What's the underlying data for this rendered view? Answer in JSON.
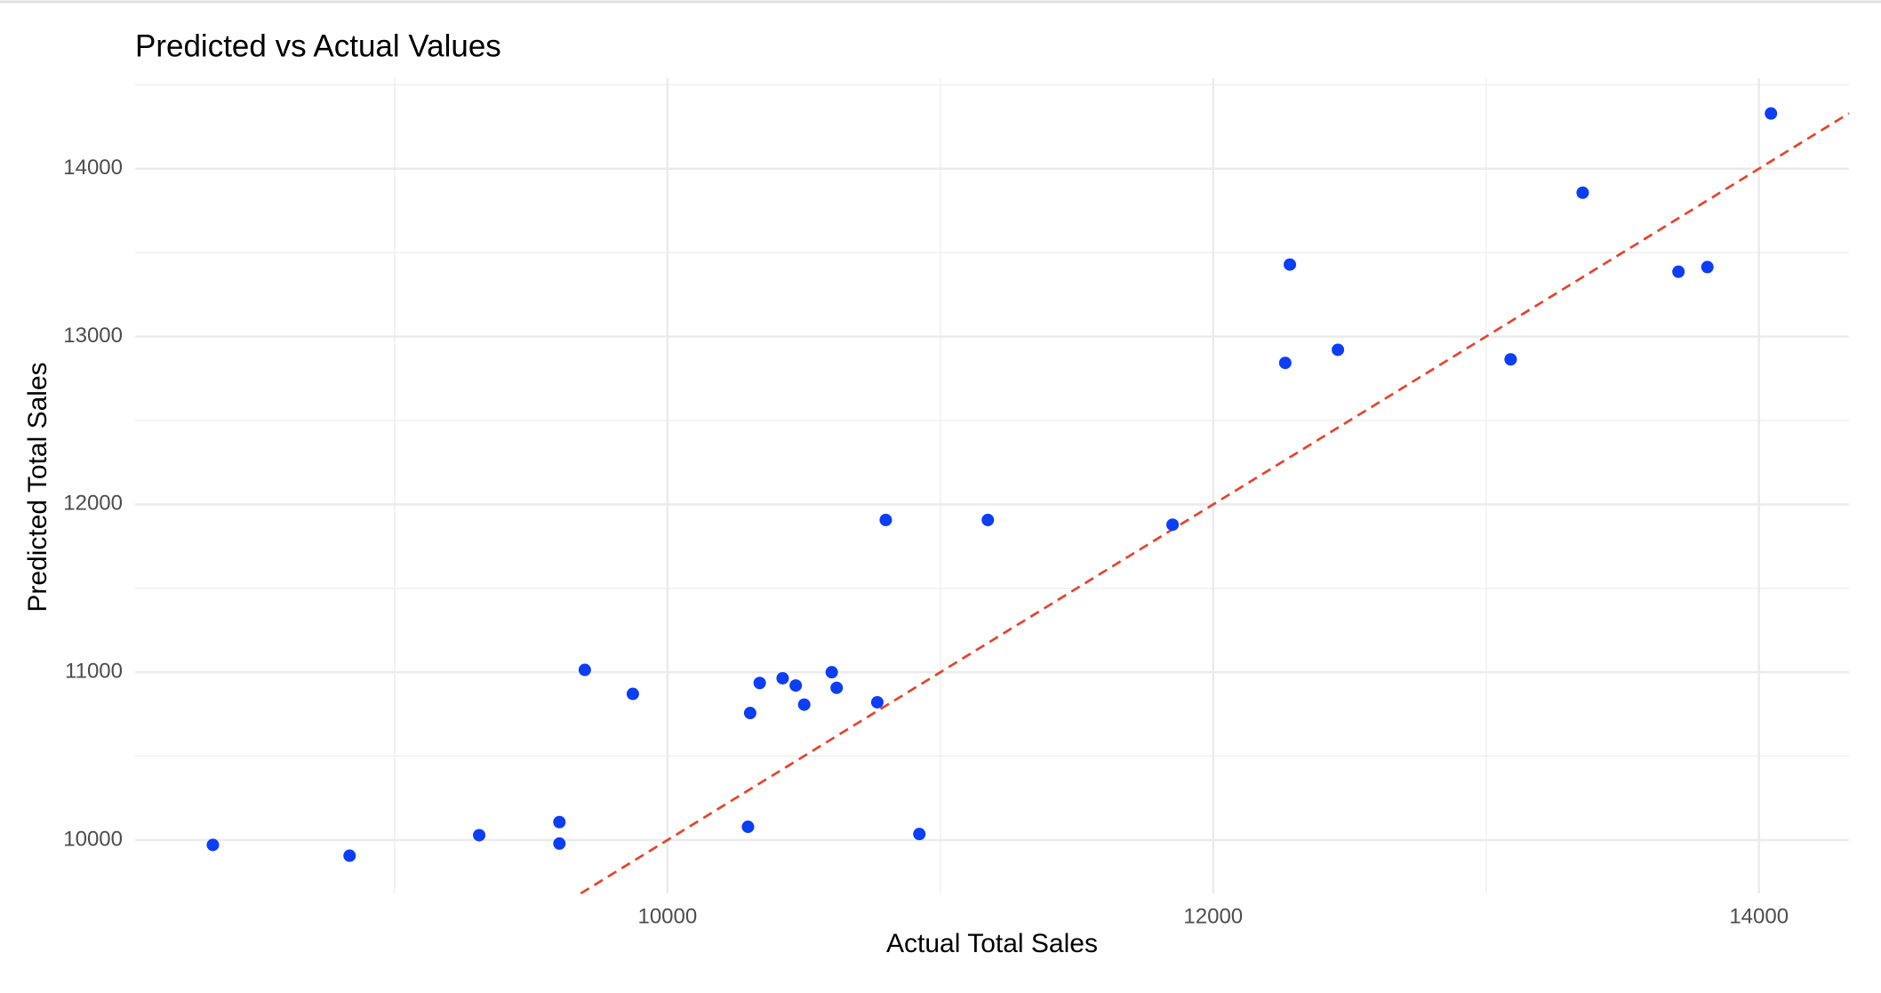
{
  "chart_data": {
    "type": "scatter",
    "title": "Predicted vs Actual Values",
    "x_label": "Actual Total Sales",
    "y_label": "Predicted Total Sales",
    "series": [
      {
        "color": "#0b3ef5",
        "x": [
          8334,
          8835,
          9310,
          9604,
          9604,
          9697,
          9873,
          10295,
          10303,
          10338,
          10422,
          10470,
          10501,
          10602,
          10620,
          10769,
          10800,
          10923,
          11174,
          11851,
          12264,
          12281,
          12457,
          13090,
          13354,
          13705,
          13811,
          14044
        ],
        "values": [
          9971,
          9907,
          10029,
          10107,
          9979,
          11014,
          10871,
          10079,
          10757,
          10936,
          10964,
          10921,
          10807,
          11000,
          10907,
          10821,
          11907,
          10036,
          11907,
          11879,
          12843,
          13429,
          12921,
          12864,
          13857,
          13386,
          13414,
          14329
        ]
      }
    ],
    "reference_line": {
      "slope": 1,
      "intercept": 0,
      "color": "#e8432b",
      "style": "dashed"
    },
    "xlim": [
      8049,
      14330
    ],
    "ylim": [
      9682,
      14539
    ],
    "xticks": [
      10000,
      12000,
      14000
    ],
    "yticks": [
      10000,
      11000,
      12000,
      13000,
      14000
    ],
    "xminorticks": [
      9000,
      11000,
      13000
    ],
    "yminorticks": [
      10500,
      11500,
      12500,
      13500,
      14500
    ],
    "grid": true
  }
}
